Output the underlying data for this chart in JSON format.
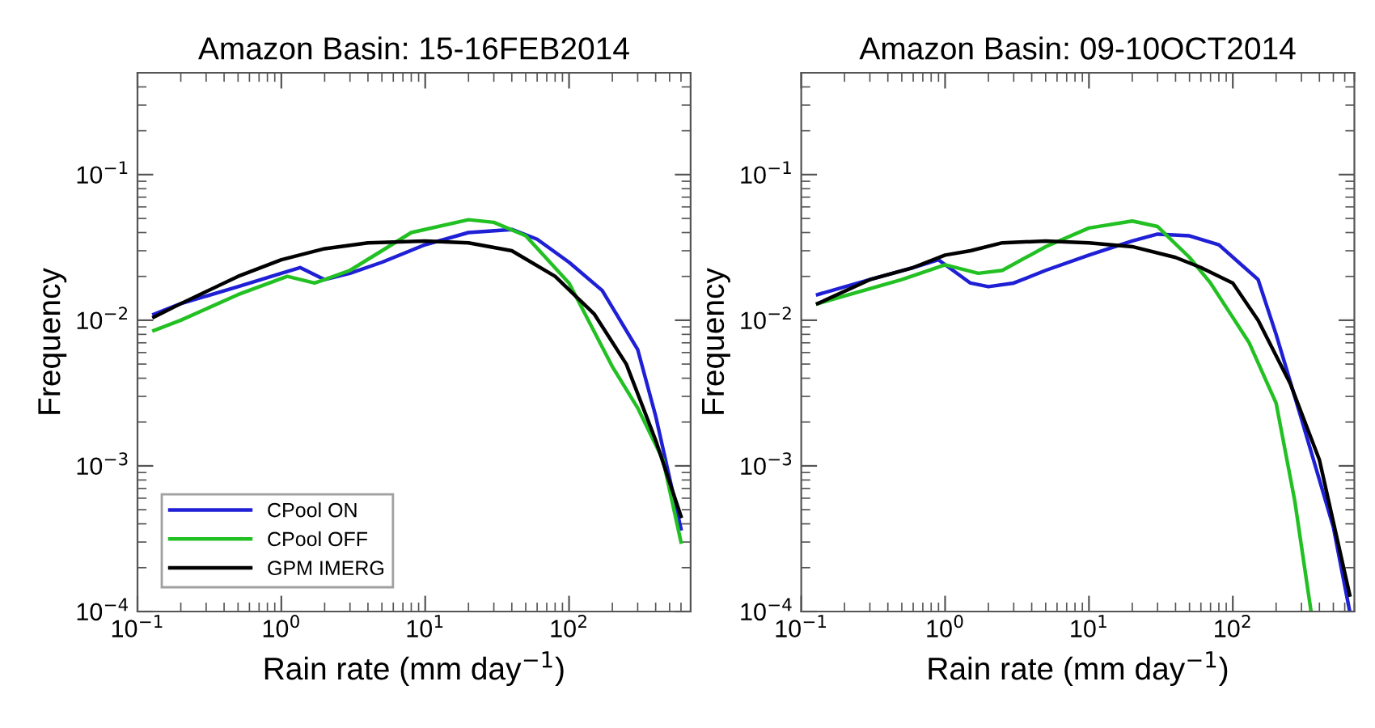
{
  "chart_data": [
    {
      "type": "line",
      "title": "Amazon Basin: 15-16FEB2014",
      "xlabel": "Rain rate (mm day$^{−1}$)",
      "ylabel": "Frequency",
      "log": "xy",
      "grid": false,
      "legend": "bottom left",
      "line_style": "solid",
      "marker": "none",
      "xlim": [
        0.1,
        700
      ],
      "ylim": [
        0.0001,
        0.5
      ],
      "xticks": [
        {
          "value": 0.1,
          "label": "10$^{−1}$"
        },
        {
          "value": 1,
          "label": "10$^{0}$"
        },
        {
          "value": 10,
          "label": "10$^{1}$"
        },
        {
          "value": 100,
          "label": "10$^{2}$"
        }
      ],
      "yticks": [
        {
          "value": 0.0001,
          "label": "10$^{−4}$"
        },
        {
          "value": 0.001,
          "label": "10$^{−3}$"
        },
        {
          "value": 0.01,
          "label": "10$^{−2}$"
        },
        {
          "value": 0.1,
          "label": "10$^{−1}$"
        }
      ],
      "series": [
        {
          "name": "CPool ON",
          "color": "#1f1fd6",
          "x": [
            0.13,
            0.2,
            0.5,
            1.0,
            1.35,
            2.0,
            3,
            5,
            10,
            20,
            40,
            60,
            100,
            170,
            300,
            400,
            600
          ],
          "values": [
            0.011,
            0.013,
            0.017,
            0.021,
            0.023,
            0.019,
            0.021,
            0.025,
            0.033,
            0.04,
            0.042,
            0.036,
            0.025,
            0.016,
            0.0063,
            0.0022,
            0.00037
          ]
        },
        {
          "name": "CPool OFF",
          "color": "#22c022",
          "x": [
            0.13,
            0.2,
            0.5,
            1.1,
            1.7,
            2,
            3,
            5,
            8,
            20,
            30,
            50,
            100,
            200,
            300,
            450,
            600
          ],
          "values": [
            0.0085,
            0.01,
            0.015,
            0.02,
            0.018,
            0.019,
            0.022,
            0.03,
            0.04,
            0.049,
            0.047,
            0.038,
            0.018,
            0.0048,
            0.0025,
            0.0011,
            0.0003
          ]
        },
        {
          "name": "GPM IMERG",
          "color": "#000000",
          "x": [
            0.13,
            0.2,
            0.5,
            1.0,
            2,
            4,
            10,
            20,
            40,
            80,
            150,
            250,
            400,
            600
          ],
          "values": [
            0.0105,
            0.013,
            0.02,
            0.026,
            0.031,
            0.034,
            0.035,
            0.034,
            0.03,
            0.02,
            0.011,
            0.005,
            0.0015,
            0.00045
          ]
        }
      ]
    },
    {
      "type": "line",
      "title": "Amazon Basin: 09-10OCT2014",
      "xlabel": "Rain rate (mm day$^{−1}$)",
      "ylabel": "Frequency",
      "log": "xy",
      "grid": false,
      "line_style": "solid",
      "marker": "none",
      "xlim": [
        0.1,
        700
      ],
      "ylim": [
        0.0001,
        0.5
      ],
      "xticks": [
        {
          "value": 0.1,
          "label": "10$^{−1}$"
        },
        {
          "value": 1,
          "label": "10$^{0}$"
        },
        {
          "value": 10,
          "label": "10$^{1}$"
        },
        {
          "value": 100,
          "label": "10$^{2}$"
        }
      ],
      "yticks": [
        {
          "value": 0.0001,
          "label": "10$^{−4}$"
        },
        {
          "value": 0.001,
          "label": "10$^{−3}$"
        },
        {
          "value": 0.01,
          "label": "10$^{−2}$"
        },
        {
          "value": 0.1,
          "label": "10$^{−1}$"
        }
      ],
      "series": [
        {
          "color": "#1f1fd6",
          "x": [
            0.13,
            0.3,
            0.6,
            0.9,
            1.5,
            2,
            3,
            5,
            10,
            20,
            30,
            50,
            80,
            150,
            200,
            300,
            500,
            650
          ],
          "values": [
            0.015,
            0.019,
            0.023,
            0.026,
            0.018,
            0.017,
            0.018,
            0.022,
            0.028,
            0.035,
            0.039,
            0.038,
            0.033,
            0.019,
            0.008,
            0.0021,
            0.00038,
            0.0001
          ]
        },
        {
          "color": "#22c022",
          "x": [
            0.13,
            0.5,
            1.0,
            1.7,
            2.5,
            5,
            10,
            20,
            30,
            50,
            70,
            130,
            200,
            270,
            350
          ],
          "values": [
            0.013,
            0.019,
            0.024,
            0.021,
            0.022,
            0.032,
            0.043,
            0.048,
            0.044,
            0.027,
            0.018,
            0.007,
            0.0027,
            0.00057,
            0.0001
          ]
        },
        {
          "color": "#000000",
          "x": [
            0.13,
            0.3,
            0.6,
            1.0,
            1.5,
            2.5,
            5,
            10,
            20,
            40,
            60,
            100,
            150,
            250,
            400,
            650
          ],
          "values": [
            0.013,
            0.019,
            0.023,
            0.028,
            0.03,
            0.034,
            0.035,
            0.034,
            0.032,
            0.027,
            0.023,
            0.018,
            0.01,
            0.0037,
            0.0011,
            0.00013
          ]
        }
      ]
    }
  ]
}
